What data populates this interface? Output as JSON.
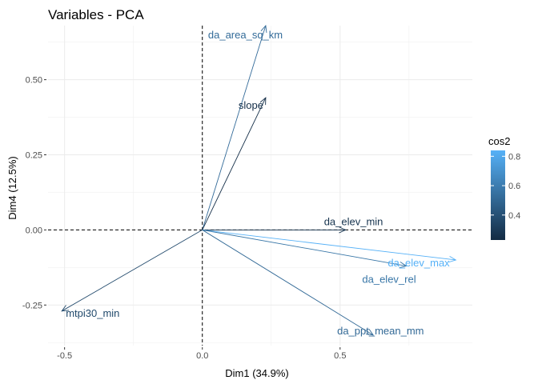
{
  "chart_data": {
    "type": "scatter",
    "subtype": "pca-variable-correlation-plot",
    "title": "Variables - PCA",
    "xlabel": "Dim1 (34.9%)",
    "ylabel": "Dim4 (12.5%)",
    "xlim": [
      -0.56,
      0.98
    ],
    "ylim": [
      -0.385,
      0.68
    ],
    "x_ticks": [
      -0.5,
      0.0,
      0.5
    ],
    "x_tick_labels": [
      "-0.5",
      "0.0",
      "0.5"
    ],
    "y_ticks": [
      -0.25,
      0.0,
      0.25,
      0.5
    ],
    "y_tick_labels": [
      "-0.25",
      "0.00",
      "0.25",
      "0.50"
    ],
    "grid": true,
    "reference_lines": {
      "x": 0,
      "y": 0,
      "style": "dashed"
    },
    "color_by": "cos2",
    "color_scale": {
      "low": "#132b43",
      "high": "#56b1f7",
      "min": 0.23,
      "max": 0.84
    },
    "legend": {
      "title": "cos2",
      "position": "right",
      "ticks": [
        0.4,
        0.6,
        0.8
      ],
      "tick_labels": [
        "0.4",
        "0.6",
        "0.8"
      ]
    },
    "variables": [
      {
        "name": "da_area_sq_km",
        "x": 0.23,
        "y": 0.68,
        "cos2": 0.52
      },
      {
        "name": "slope",
        "x": 0.23,
        "y": 0.44,
        "cos2": 0.25
      },
      {
        "name": "da_elev_min",
        "x": 0.52,
        "y": 0.0,
        "cos2": 0.27
      },
      {
        "name": "da_elev_max",
        "x": 0.92,
        "y": -0.1,
        "cos2": 0.84
      },
      {
        "name": "da_elev_rel",
        "x": 0.74,
        "y": -0.12,
        "cos2": 0.57
      },
      {
        "name": "da_ppt_mean_mm",
        "x": 0.62,
        "y": -0.35,
        "cos2": 0.51
      },
      {
        "name": "mtpi30_min",
        "x": -0.51,
        "y": -0.27,
        "cos2": 0.37
      }
    ]
  }
}
